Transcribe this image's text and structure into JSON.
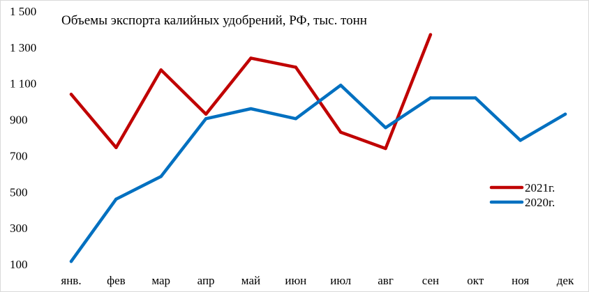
{
  "chart_data": {
    "type": "line",
    "title": "Объемы экспорта калийных удобрений, РФ, тыс. тонн",
    "xlabel": "",
    "ylabel": "",
    "categories": [
      "янв.",
      "фев",
      "мар",
      "апр",
      "май",
      "июн",
      "июл",
      "авг",
      "сен",
      "окт",
      "ноя",
      "дек"
    ],
    "ylim": [
      100,
      1500
    ],
    "yticks": [
      100,
      300,
      500,
      700,
      900,
      1100,
      1300,
      1500
    ],
    "ytick_labels": [
      "100",
      "300",
      "500",
      "700",
      "900",
      "1 100",
      "1 300",
      "1 500"
    ],
    "grid": false,
    "legend_position": "right",
    "series": [
      {
        "name": "2021г.",
        "color": "#c00000",
        "values": [
          1040,
          745,
          1175,
          930,
          1240,
          1190,
          830,
          740,
          1370,
          null,
          null,
          null
        ]
      },
      {
        "name": "2020г.",
        "color": "#0070c0",
        "values": [
          115,
          460,
          585,
          905,
          960,
          905,
          1090,
          855,
          1020,
          1020,
          785,
          930
        ]
      }
    ]
  }
}
